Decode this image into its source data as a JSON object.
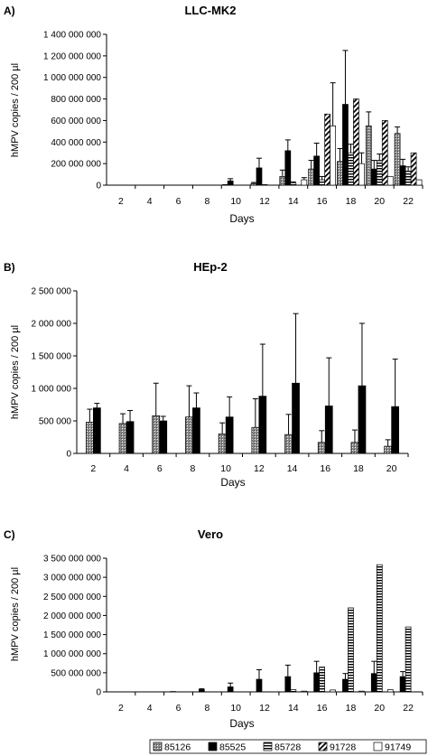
{
  "chart_data": [
    {
      "type": "bar",
      "panel_label": "A)",
      "title": "LLC-MK2",
      "xlabel": "Days",
      "ylabel": "hMPV copies / 200 µl",
      "ylim": [
        0,
        1400000000
      ],
      "yticks": [
        0,
        200000000,
        400000000,
        600000000,
        800000000,
        1000000000,
        1200000000,
        1400000000
      ],
      "ytick_labels": [
        "0",
        "200 000 000",
        "400 000 000",
        "600 000 000",
        "800 000 000",
        "1 000 000 000",
        "1 200 000 000",
        "1 400 000 000"
      ],
      "categories": [
        "2",
        "4",
        "6",
        "8",
        "10",
        "12",
        "14",
        "16",
        "18",
        "20",
        "22"
      ],
      "series": [
        {
          "name": "85126",
          "values": [
            0,
            0,
            0,
            0,
            2000000,
            15000000,
            80000000,
            150000000,
            220000000,
            550000000,
            480000000
          ],
          "errors": [
            0,
            0,
            0,
            0,
            2000000,
            10000000,
            60000000,
            80000000,
            120000000,
            130000000,
            60000000
          ]
        },
        {
          "name": "85525",
          "values": [
            0,
            0,
            0,
            0,
            40000000,
            160000000,
            320000000,
            270000000,
            750000000,
            150000000,
            180000000
          ],
          "errors": [
            0,
            0,
            0,
            0,
            20000000,
            90000000,
            100000000,
            120000000,
            500000000,
            80000000,
            60000000
          ]
        },
        {
          "name": "85728",
          "values": [
            0,
            0,
            0,
            0,
            2000000,
            5000000,
            20000000,
            50000000,
            300000000,
            230000000,
            130000000
          ],
          "errors": [
            0,
            0,
            0,
            0,
            0,
            0,
            10000000,
            30000000,
            80000000,
            60000000,
            40000000
          ]
        },
        {
          "name": "91728",
          "values": [
            0,
            0,
            0,
            0,
            0,
            0,
            0,
            660000000,
            800000000,
            600000000,
            300000000
          ],
          "errors": [
            0,
            0,
            0,
            0,
            0,
            0,
            0,
            0,
            0,
            0,
            0
          ]
        },
        {
          "name": "91749",
          "values": [
            0,
            0,
            0,
            0,
            0,
            0,
            50000000,
            550000000,
            200000000,
            80000000,
            50000000
          ],
          "errors": [
            0,
            0,
            0,
            0,
            0,
            0,
            20000000,
            400000000,
            100000000,
            0,
            0
          ]
        }
      ]
    },
    {
      "type": "bar",
      "panel_label": "B)",
      "title": "HEp-2",
      "xlabel": "Days",
      "ylabel": "hMPV copies / 200 µl",
      "ylim": [
        0,
        2500000
      ],
      "yticks": [
        0,
        500000,
        1000000,
        1500000,
        2000000,
        2500000
      ],
      "ytick_labels": [
        "0",
        "500 000",
        "1 000 000",
        "1 500 000",
        "2 000 000",
        "2 500 000"
      ],
      "categories": [
        "2",
        "4",
        "6",
        "8",
        "10",
        "12",
        "14",
        "16",
        "18",
        "20"
      ],
      "series": [
        {
          "name": "85126",
          "values": [
            480000,
            460000,
            580000,
            560000,
            300000,
            400000,
            290000,
            170000,
            170000,
            110000
          ],
          "errors": [
            200000,
            150000,
            500000,
            480000,
            170000,
            440000,
            310000,
            180000,
            190000,
            100000
          ]
        },
        {
          "name": "85525",
          "values": [
            700000,
            490000,
            500000,
            700000,
            560000,
            880000,
            1080000,
            730000,
            1040000,
            720000
          ],
          "errors": [
            70000,
            170000,
            70000,
            230000,
            310000,
            800000,
            1070000,
            740000,
            960000,
            730000
          ]
        }
      ]
    },
    {
      "type": "bar",
      "panel_label": "C)",
      "title": "Vero",
      "xlabel": "Days",
      "ylabel": "hMPV copies / 200 µl",
      "ylim": [
        0,
        3500000000
      ],
      "yticks": [
        0,
        500000000,
        1000000000,
        1500000000,
        2000000000,
        2500000000,
        3000000000,
        3500000000
      ],
      "ytick_labels": [
        "0",
        "500 000 000",
        "1 000 000 000",
        "1 500 000 000",
        "2 000 000 000",
        "2 500 000 000",
        "3 000 000 000",
        "3 500 000 000"
      ],
      "categories": [
        "2",
        "4",
        "6",
        "8",
        "10",
        "12",
        "14",
        "16",
        "18",
        "20",
        "22"
      ],
      "series": [
        {
          "name": "85126",
          "values": [
            0,
            0,
            0,
            0,
            0,
            0,
            0,
            0,
            0,
            0,
            0
          ],
          "errors": [
            0,
            0,
            0,
            0,
            0,
            0,
            0,
            0,
            0,
            0,
            0
          ]
        },
        {
          "name": "85525",
          "values": [
            0,
            0,
            10000000,
            60000000,
            130000000,
            330000000,
            400000000,
            500000000,
            330000000,
            480000000,
            400000000
          ],
          "errors": [
            0,
            0,
            0,
            20000000,
            100000000,
            250000000,
            300000000,
            300000000,
            150000000,
            320000000,
            130000000
          ]
        },
        {
          "name": "85728",
          "values": [
            0,
            0,
            0,
            0,
            0,
            0,
            60000000,
            650000000,
            2200000000,
            3330000000,
            1700000000
          ],
          "errors": [
            0,
            0,
            0,
            0,
            0,
            0,
            0,
            0,
            0,
            0,
            0
          ]
        },
        {
          "name": "91728",
          "values": [
            0,
            0,
            0,
            0,
            0,
            0,
            0,
            0,
            0,
            0,
            0
          ],
          "errors": [
            0,
            0,
            0,
            0,
            0,
            0,
            0,
            0,
            0,
            0,
            0
          ]
        },
        {
          "name": "91749",
          "values": [
            0,
            0,
            0,
            0,
            0,
            0,
            20000000,
            50000000,
            20000000,
            60000000,
            0
          ],
          "errors": [
            0,
            0,
            0,
            0,
            0,
            0,
            0,
            0,
            0,
            0,
            0
          ]
        }
      ]
    }
  ],
  "legend": {
    "placement": "bottom-center",
    "items": [
      {
        "name": "85126",
        "pattern": "dotted-gray"
      },
      {
        "name": "85525",
        "pattern": "solid-black"
      },
      {
        "name": "85728",
        "pattern": "horizontal-lines"
      },
      {
        "name": "91728",
        "pattern": "diagonal-lines"
      },
      {
        "name": "91749",
        "pattern": "white"
      }
    ]
  }
}
